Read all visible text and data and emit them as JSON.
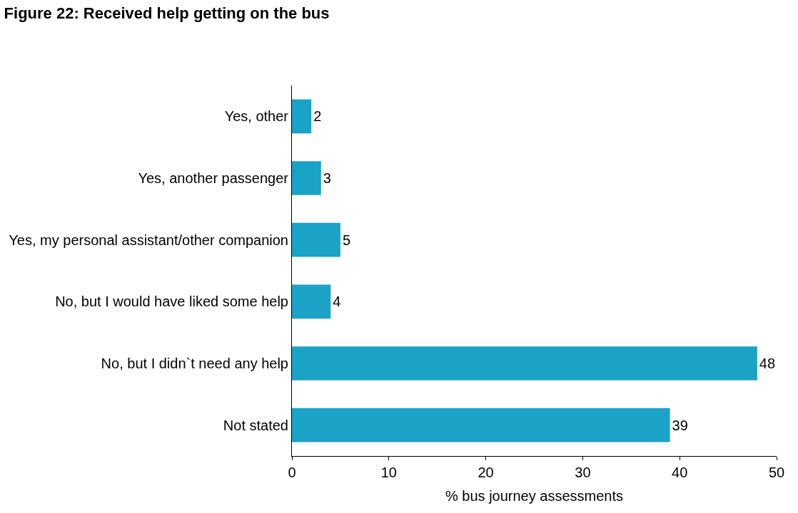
{
  "chart_data": {
    "type": "bar",
    "orientation": "horizontal",
    "title": "Figure 22: Received help getting on the bus",
    "xlabel": "% bus journey assessments",
    "categories": [
      "Yes, other",
      "Yes, another passenger",
      "Yes, my personal assistant/other companion",
      "No, but I would have liked some help",
      "No, but I didn`t need any help",
      "Not stated"
    ],
    "values": [
      2,
      3,
      5,
      4,
      48,
      39
    ],
    "color": "#1aa3c6",
    "xlim": [
      0,
      50
    ],
    "xticks": [
      0,
      10,
      20,
      30,
      40,
      50
    ],
    "data_labels": true
  }
}
